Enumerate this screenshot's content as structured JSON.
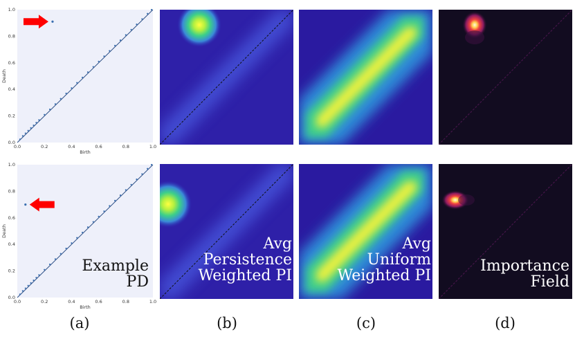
{
  "figure": {
    "captions": [
      "(a)",
      "(b)",
      "(c)",
      "(d)"
    ],
    "overlay_labels": {
      "a": [
        "Example",
        "PD"
      ],
      "b": [
        "Avg",
        "Persistence",
        "Weighted PI"
      ],
      "c": [
        "Avg",
        "Uniform",
        "Weighted PI"
      ],
      "d": [
        "Importance",
        "Field"
      ]
    },
    "arrow_color": "#ff0000",
    "panel_bg": "#eef0fa",
    "point_color": "#3a6fb0"
  },
  "chart_data": [
    {
      "type": "scatter",
      "panel": "a-top",
      "xlabel": "Birth",
      "ylabel": "Death",
      "xlim": [
        0,
        1.0
      ],
      "ylim": [
        0,
        1.0
      ],
      "xticks": [
        "0.0",
        "0.2",
        "0.4",
        "0.6",
        "0.8",
        "1.0"
      ],
      "yticks": [
        "0.0",
        "0.2",
        "0.4",
        "0.6",
        "0.8",
        "1.0"
      ],
      "outlier": {
        "x": 0.26,
        "y": 0.91
      },
      "diagonal_points": [
        [
          0.02,
          0.025
        ],
        [
          0.04,
          0.05
        ],
        [
          0.06,
          0.07
        ],
        [
          0.08,
          0.09
        ],
        [
          0.1,
          0.11
        ],
        [
          0.12,
          0.13
        ],
        [
          0.14,
          0.15
        ],
        [
          0.16,
          0.17
        ],
        [
          0.2,
          0.21
        ],
        [
          0.24,
          0.25
        ],
        [
          0.28,
          0.29
        ],
        [
          0.32,
          0.33
        ],
        [
          0.36,
          0.37
        ],
        [
          0.4,
          0.41
        ],
        [
          0.44,
          0.45
        ],
        [
          0.48,
          0.49
        ],
        [
          0.52,
          0.53
        ],
        [
          0.56,
          0.57
        ],
        [
          0.6,
          0.61
        ],
        [
          0.64,
          0.65
        ],
        [
          0.68,
          0.69
        ],
        [
          0.72,
          0.73
        ],
        [
          0.76,
          0.77
        ],
        [
          0.8,
          0.81
        ],
        [
          0.84,
          0.85
        ],
        [
          0.88,
          0.89
        ],
        [
          0.92,
          0.93
        ],
        [
          0.96,
          0.97
        ],
        [
          0.99,
          1.0
        ]
      ]
    },
    {
      "type": "scatter",
      "panel": "a-bottom",
      "xlabel": "Birth",
      "ylabel": "Death",
      "xlim": [
        0,
        1.0
      ],
      "ylim": [
        0,
        1.0
      ],
      "xticks": [
        "0.0",
        "0.2",
        "0.4",
        "0.6",
        "0.8",
        "1.0"
      ],
      "yticks": [
        "0.0",
        "0.2",
        "0.4",
        "0.6",
        "0.8",
        "1.0"
      ],
      "outlier": {
        "x": 0.06,
        "y": 0.7
      },
      "diagonal_points": [
        [
          0.02,
          0.025
        ],
        [
          0.04,
          0.05
        ],
        [
          0.06,
          0.07
        ],
        [
          0.08,
          0.09
        ],
        [
          0.1,
          0.11
        ],
        [
          0.12,
          0.13
        ],
        [
          0.14,
          0.15
        ],
        [
          0.16,
          0.17
        ],
        [
          0.2,
          0.21
        ],
        [
          0.24,
          0.25
        ],
        [
          0.28,
          0.29
        ],
        [
          0.32,
          0.33
        ],
        [
          0.36,
          0.37
        ],
        [
          0.4,
          0.41
        ],
        [
          0.44,
          0.45
        ],
        [
          0.48,
          0.49
        ],
        [
          0.52,
          0.53
        ],
        [
          0.56,
          0.57
        ],
        [
          0.6,
          0.61
        ],
        [
          0.64,
          0.65
        ],
        [
          0.68,
          0.69
        ],
        [
          0.72,
          0.73
        ],
        [
          0.76,
          0.77
        ],
        [
          0.8,
          0.81
        ],
        [
          0.84,
          0.85
        ],
        [
          0.88,
          0.89
        ],
        [
          0.92,
          0.93
        ],
        [
          0.96,
          0.97
        ],
        [
          0.99,
          1.0
        ]
      ]
    },
    {
      "type": "heatmap",
      "panel": "b-top",
      "hotspot": {
        "x": 0.3,
        "y": 0.88
      }
    },
    {
      "type": "heatmap",
      "panel": "b-bottom",
      "hotspot": {
        "x": 0.05,
        "y": 0.7
      }
    },
    {
      "type": "heatmap",
      "panel": "c-top"
    },
    {
      "type": "heatmap",
      "panel": "c-bottom"
    },
    {
      "type": "heatmap",
      "panel": "d-top",
      "hotspot": {
        "x": 0.27,
        "y": 0.9
      }
    },
    {
      "type": "heatmap",
      "panel": "d-bottom",
      "hotspot": {
        "x": 0.12,
        "y": 0.72
      }
    }
  ]
}
